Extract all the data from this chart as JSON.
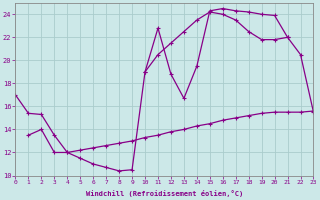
{
  "bg_color": "#cce8e8",
  "line_color": "#880088",
  "grid_color": "#aacccc",
  "xlabel": "Windchill (Refroidissement éolien,°C)",
  "xmin": 0,
  "xmax": 23,
  "ymin": 10,
  "ymax": 25,
  "yticks": [
    10,
    12,
    14,
    16,
    18,
    20,
    22,
    24
  ],
  "xticks": [
    0,
    1,
    2,
    3,
    4,
    5,
    6,
    7,
    8,
    9,
    10,
    11,
    12,
    13,
    14,
    15,
    16,
    17,
    18,
    19,
    20,
    21,
    22,
    23
  ],
  "series": [
    {
      "x": [
        0,
        1,
        2,
        3,
        4,
        5,
        6,
        7,
        8,
        9,
        10,
        11,
        12,
        13,
        14,
        15,
        16,
        17,
        18,
        19,
        20,
        21,
        22,
        23
      ],
      "y": [
        17.0,
        15.4,
        15.3,
        13.5,
        12.0,
        11.5,
        11.0,
        10.7,
        10.4,
        10.5,
        19.0,
        22.8,
        18.8,
        16.7,
        19.5,
        24.3,
        24.5,
        24.3,
        24.2,
        24.0,
        23.9,
        22.0,
        20.5,
        15.5
      ]
    },
    {
      "x": [
        1,
        2,
        3,
        4,
        5,
        6,
        7,
        8,
        9,
        10,
        11,
        12,
        13,
        14,
        15,
        16,
        17,
        18,
        19,
        20,
        21,
        22,
        23
      ],
      "y": [
        13.5,
        14.0,
        12.0,
        12.0,
        12.2,
        12.4,
        12.6,
        12.8,
        13.0,
        13.3,
        13.5,
        13.8,
        14.0,
        14.3,
        14.5,
        14.8,
        15.0,
        15.2,
        15.4,
        15.5,
        15.5,
        15.5,
        15.6
      ]
    },
    {
      "x": [
        10,
        11,
        12,
        13,
        14,
        15,
        16,
        17,
        18,
        19,
        20,
        21
      ],
      "y": [
        19.0,
        20.5,
        21.5,
        22.5,
        23.5,
        24.2,
        24.0,
        23.5,
        22.5,
        21.8,
        21.8,
        22.0
      ]
    }
  ]
}
